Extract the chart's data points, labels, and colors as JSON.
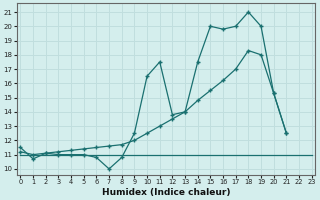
{
  "xlabel": "Humidex (Indice chaleur)",
  "bg_color": "#d4eeed",
  "grid_color": "#c0dede",
  "line_color": "#1a7070",
  "x_ticks": [
    0,
    1,
    2,
    3,
    4,
    5,
    6,
    7,
    8,
    9,
    10,
    11,
    12,
    13,
    14,
    15,
    16,
    17,
    18,
    19,
    20,
    21,
    22,
    23
  ],
  "y_ticks": [
    10,
    11,
    12,
    13,
    14,
    15,
    16,
    17,
    18,
    19,
    20,
    21
  ],
  "xlim": [
    -0.3,
    23.3
  ],
  "ylim": [
    9.6,
    21.6
  ],
  "line_flat": {
    "x": [
      0,
      1,
      2,
      3,
      4,
      5,
      6,
      7,
      8,
      9,
      10,
      11,
      12,
      13,
      14,
      15,
      16,
      17,
      18,
      19,
      20,
      21,
      22,
      23
    ],
    "y": [
      11.0,
      11.0,
      11.0,
      11.0,
      11.0,
      11.0,
      11.0,
      11.0,
      11.0,
      11.0,
      11.0,
      11.0,
      11.0,
      11.0,
      11.0,
      11.0,
      11.0,
      11.0,
      11.0,
      11.0,
      11.0,
      11.0,
      11.0,
      11.0
    ]
  },
  "line_smooth": {
    "x": [
      0,
      1,
      2,
      3,
      4,
      5,
      6,
      7,
      8,
      9,
      10,
      11,
      12,
      13,
      14,
      15,
      16,
      17,
      18,
      19,
      20,
      21,
      22,
      23
    ],
    "y": [
      11.2,
      11.0,
      11.1,
      11.2,
      11.3,
      11.4,
      11.5,
      11.6,
      11.7,
      12.0,
      12.5,
      13.0,
      13.5,
      14.0,
      14.8,
      15.5,
      16.2,
      17.0,
      18.3,
      18.0,
      15.3,
      12.5,
      null,
      null
    ]
  },
  "line_jagged": {
    "x": [
      0,
      1,
      2,
      3,
      4,
      5,
      6,
      7,
      8,
      9,
      10,
      11,
      12,
      13,
      14,
      15,
      16,
      17,
      18,
      19,
      20,
      21,
      22,
      23
    ],
    "y": [
      11.5,
      10.7,
      11.1,
      11.0,
      11.0,
      11.0,
      10.8,
      10.0,
      10.8,
      12.5,
      16.5,
      17.5,
      13.8,
      14.0,
      17.5,
      20.0,
      19.8,
      20.0,
      21.0,
      20.0,
      15.3,
      12.5,
      null,
      null
    ]
  }
}
